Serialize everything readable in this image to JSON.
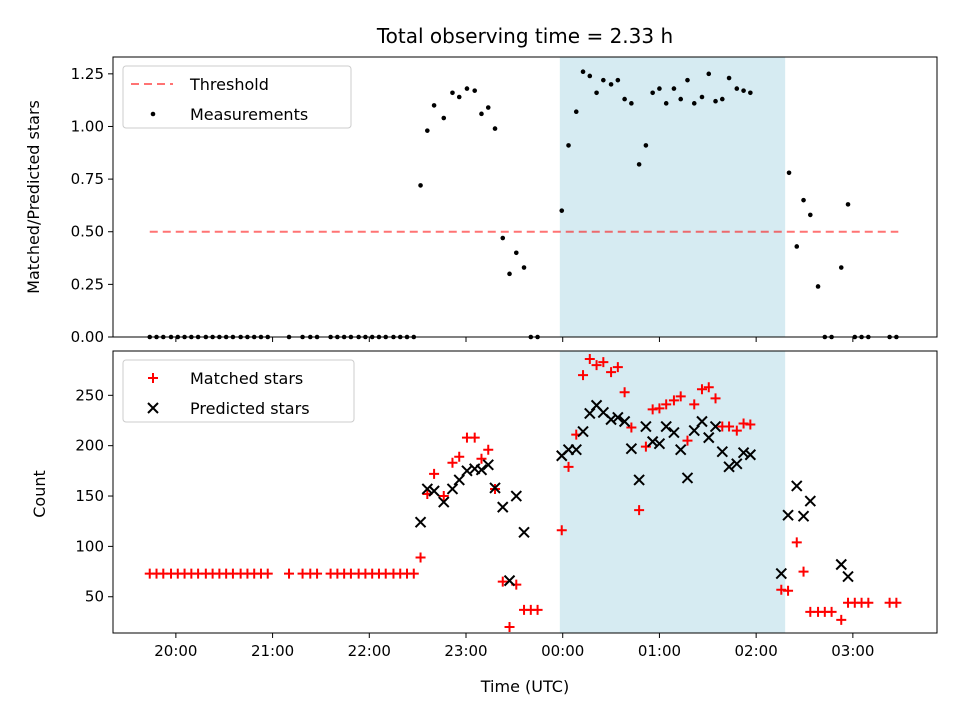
{
  "title": "Total observing time = 2.33 h",
  "xlabel": "Time (UTC)",
  "x_ticks": [
    "20:00",
    "21:00",
    "22:00",
    "23:00",
    "00:00",
    "01:00",
    "02:00",
    "03:00"
  ],
  "x_tick_hours": [
    20,
    21,
    22,
    23,
    24,
    25,
    26,
    27
  ],
  "xlim_hours": [
    19.35,
    27.87
  ],
  "shaded_window_hours": [
    23.97,
    26.3
  ],
  "colors": {
    "shade": "#add8e6",
    "threshold": "#ff0000",
    "measurement": "#000000",
    "matched": "#ff0000",
    "predicted": "#000000"
  },
  "chart_data": [
    {
      "type": "scatter",
      "ylabel": "Matched/Predicted stars",
      "ylim": [
        0,
        1.33
      ],
      "y_ticks": [
        "0.00",
        "0.25",
        "0.50",
        "0.75",
        "1.00",
        "1.25"
      ],
      "y_tick_values": [
        0,
        0.25,
        0.5,
        0.75,
        1.0,
        1.25
      ],
      "legend_position": "upper-left",
      "series": [
        {
          "name": "Threshold",
          "kind": "dashed-line",
          "points": [
            [
              19.73,
              0.5
            ],
            [
              27.47,
              0.5
            ]
          ]
        },
        {
          "name": "Measurements",
          "kind": "dots",
          "points": [
            [
              19.73,
              0
            ],
            [
              19.8,
              0
            ],
            [
              19.87,
              0
            ],
            [
              19.95,
              0
            ],
            [
              20.02,
              0
            ],
            [
              20.09,
              0
            ],
            [
              20.16,
              0
            ],
            [
              20.23,
              0
            ],
            [
              20.31,
              0
            ],
            [
              20.38,
              0
            ],
            [
              20.45,
              0
            ],
            [
              20.52,
              0
            ],
            [
              20.59,
              0
            ],
            [
              20.67,
              0
            ],
            [
              20.74,
              0
            ],
            [
              20.81,
              0
            ],
            [
              20.88,
              0
            ],
            [
              20.95,
              0
            ],
            [
              21.17,
              0
            ],
            [
              21.31,
              0
            ],
            [
              21.39,
              0
            ],
            [
              21.46,
              0
            ],
            [
              21.6,
              0
            ],
            [
              21.67,
              0
            ],
            [
              21.74,
              0
            ],
            [
              21.81,
              0
            ],
            [
              21.89,
              0
            ],
            [
              21.96,
              0
            ],
            [
              22.03,
              0
            ],
            [
              22.1,
              0
            ],
            [
              22.17,
              0
            ],
            [
              22.25,
              0
            ],
            [
              22.32,
              0
            ],
            [
              22.39,
              0
            ],
            [
              22.46,
              0
            ],
            [
              22.53,
              0.72
            ],
            [
              22.6,
              0.98
            ],
            [
              22.67,
              1.1
            ],
            [
              22.77,
              1.04
            ],
            [
              22.86,
              1.16
            ],
            [
              22.93,
              1.14
            ],
            [
              23.01,
              1.18
            ],
            [
              23.09,
              1.17
            ],
            [
              23.16,
              1.06
            ],
            [
              23.23,
              1.09
            ],
            [
              23.3,
              0.99
            ],
            [
              23.38,
              0.47
            ],
            [
              23.45,
              0.3
            ],
            [
              23.52,
              0.4
            ],
            [
              23.6,
              0.33
            ],
            [
              23.67,
              0
            ],
            [
              23.74,
              0
            ],
            [
              23.99,
              0.6
            ],
            [
              24.06,
              0.91
            ],
            [
              24.14,
              1.07
            ],
            [
              24.21,
              1.26
            ],
            [
              24.28,
              1.24
            ],
            [
              24.35,
              1.16
            ],
            [
              24.42,
              1.22
            ],
            [
              24.5,
              1.2
            ],
            [
              24.57,
              1.22
            ],
            [
              24.64,
              1.13
            ],
            [
              24.71,
              1.11
            ],
            [
              24.79,
              0.82
            ],
            [
              24.86,
              0.91
            ],
            [
              24.93,
              1.16
            ],
            [
              25.0,
              1.18
            ],
            [
              25.07,
              1.11
            ],
            [
              25.15,
              1.18
            ],
            [
              25.22,
              1.13
            ],
            [
              25.29,
              1.22
            ],
            [
              25.36,
              1.11
            ],
            [
              25.44,
              1.14
            ],
            [
              25.51,
              1.25
            ],
            [
              25.58,
              1.12
            ],
            [
              25.65,
              1.13
            ],
            [
              25.72,
              1.23
            ],
            [
              25.8,
              1.18
            ],
            [
              25.87,
              1.17
            ],
            [
              25.94,
              1.16
            ],
            [
              26.34,
              0.78
            ],
            [
              26.42,
              0.43
            ],
            [
              26.49,
              0.65
            ],
            [
              26.56,
              0.58
            ],
            [
              26.64,
              0.24
            ],
            [
              26.71,
              0
            ],
            [
              26.78,
              0
            ],
            [
              26.88,
              0.33
            ],
            [
              26.95,
              0.63
            ],
            [
              27.02,
              0
            ],
            [
              27.09,
              0
            ],
            [
              27.16,
              0
            ],
            [
              27.38,
              0
            ],
            [
              27.45,
              0
            ]
          ]
        }
      ]
    },
    {
      "type": "scatter",
      "ylabel": "Count",
      "ylim": [
        14,
        294
      ],
      "y_ticks": [
        "50",
        "100",
        "150",
        "200",
        "250"
      ],
      "y_tick_values": [
        50,
        100,
        150,
        200,
        250
      ],
      "legend_position": "upper-left",
      "series": [
        {
          "name": "Matched stars",
          "kind": "plus",
          "points": [
            [
              19.73,
              73
            ],
            [
              19.8,
              73
            ],
            [
              19.87,
              73
            ],
            [
              19.95,
              73
            ],
            [
              20.02,
              73
            ],
            [
              20.09,
              73
            ],
            [
              20.16,
              73
            ],
            [
              20.23,
              73
            ],
            [
              20.31,
              73
            ],
            [
              20.38,
              73
            ],
            [
              20.45,
              73
            ],
            [
              20.52,
              73
            ],
            [
              20.59,
              73
            ],
            [
              20.67,
              73
            ],
            [
              20.74,
              73
            ],
            [
              20.81,
              73
            ],
            [
              20.88,
              73
            ],
            [
              20.95,
              73
            ],
            [
              21.17,
              73
            ],
            [
              21.31,
              73
            ],
            [
              21.39,
              73
            ],
            [
              21.46,
              73
            ],
            [
              21.6,
              73
            ],
            [
              21.67,
              73
            ],
            [
              21.74,
              73
            ],
            [
              21.81,
              73
            ],
            [
              21.89,
              73
            ],
            [
              21.96,
              73
            ],
            [
              22.03,
              73
            ],
            [
              22.1,
              73
            ],
            [
              22.17,
              73
            ],
            [
              22.25,
              73
            ],
            [
              22.32,
              73
            ],
            [
              22.39,
              73
            ],
            [
              22.46,
              73
            ],
            [
              22.53,
              89
            ],
            [
              22.6,
              152
            ],
            [
              22.67,
              172
            ],
            [
              22.77,
              150
            ],
            [
              22.86,
              183
            ],
            [
              22.93,
              189
            ],
            [
              23.01,
              208
            ],
            [
              23.09,
              208
            ],
            [
              23.16,
              187
            ],
            [
              23.23,
              196
            ],
            [
              23.3,
              157
            ],
            [
              23.38,
              65
            ],
            [
              23.45,
              20
            ],
            [
              23.52,
              62
            ],
            [
              23.6,
              37
            ],
            [
              23.67,
              37
            ],
            [
              23.74,
              37
            ],
            [
              23.99,
              116
            ],
            [
              24.06,
              179
            ],
            [
              24.14,
              211
            ],
            [
              24.21,
              270
            ],
            [
              24.28,
              286
            ],
            [
              24.35,
              280
            ],
            [
              24.42,
              283
            ],
            [
              24.5,
              273
            ],
            [
              24.57,
              278
            ],
            [
              24.64,
              253
            ],
            [
              24.71,
              218
            ],
            [
              24.79,
              136
            ],
            [
              24.86,
              199
            ],
            [
              24.93,
              236
            ],
            [
              25.0,
              237
            ],
            [
              25.07,
              241
            ],
            [
              25.15,
              245
            ],
            [
              25.22,
              249
            ],
            [
              25.29,
              205
            ],
            [
              25.36,
              241
            ],
            [
              25.44,
              256
            ],
            [
              25.51,
              258
            ],
            [
              25.58,
              247
            ],
            [
              25.65,
              219
            ],
            [
              25.72,
              219
            ],
            [
              25.8,
              215
            ],
            [
              25.87,
              222
            ],
            [
              25.94,
              221
            ],
            [
              26.26,
              57
            ],
            [
              26.33,
              56
            ],
            [
              26.42,
              104
            ],
            [
              26.49,
              75
            ],
            [
              26.56,
              35
            ],
            [
              26.64,
              35
            ],
            [
              26.71,
              35
            ],
            [
              26.78,
              35
            ],
            [
              26.88,
              27
            ],
            [
              26.95,
              44
            ],
            [
              27.02,
              44
            ],
            [
              27.09,
              44
            ],
            [
              27.16,
              44
            ],
            [
              27.38,
              44
            ],
            [
              27.45,
              44
            ]
          ]
        },
        {
          "name": "Predicted stars",
          "kind": "cross",
          "points": [
            [
              22.53,
              124
            ],
            [
              22.6,
              157
            ],
            [
              22.67,
              155
            ],
            [
              22.77,
              144
            ],
            [
              22.86,
              157
            ],
            [
              22.93,
              166
            ],
            [
              23.01,
              175
            ],
            [
              23.09,
              177
            ],
            [
              23.16,
              176
            ],
            [
              23.23,
              181
            ],
            [
              23.3,
              158
            ],
            [
              23.38,
              139
            ],
            [
              23.45,
              66
            ],
            [
              23.52,
              150
            ],
            [
              23.6,
              114
            ],
            [
              23.99,
              190
            ],
            [
              24.06,
              196
            ],
            [
              24.14,
              196
            ],
            [
              24.21,
              214
            ],
            [
              24.28,
              232
            ],
            [
              24.35,
              240
            ],
            [
              24.42,
              233
            ],
            [
              24.5,
              226
            ],
            [
              24.57,
              228
            ],
            [
              24.64,
              224
            ],
            [
              24.71,
              197
            ],
            [
              24.79,
              166
            ],
            [
              24.86,
              219
            ],
            [
              24.93,
              204
            ],
            [
              25.0,
              202
            ],
            [
              25.07,
              219
            ],
            [
              25.15,
              213
            ],
            [
              25.22,
              196
            ],
            [
              25.29,
              168
            ],
            [
              25.36,
              215
            ],
            [
              25.44,
              224
            ],
            [
              25.51,
              208
            ],
            [
              25.58,
              219
            ],
            [
              25.65,
              194
            ],
            [
              25.72,
              179
            ],
            [
              25.8,
              182
            ],
            [
              25.87,
              193
            ],
            [
              25.94,
              191
            ],
            [
              26.26,
              73
            ],
            [
              26.33,
              131
            ],
            [
              26.42,
              160
            ],
            [
              26.49,
              130
            ],
            [
              26.56,
              145
            ],
            [
              26.88,
              82
            ],
            [
              26.95,
              70
            ]
          ]
        }
      ]
    }
  ]
}
